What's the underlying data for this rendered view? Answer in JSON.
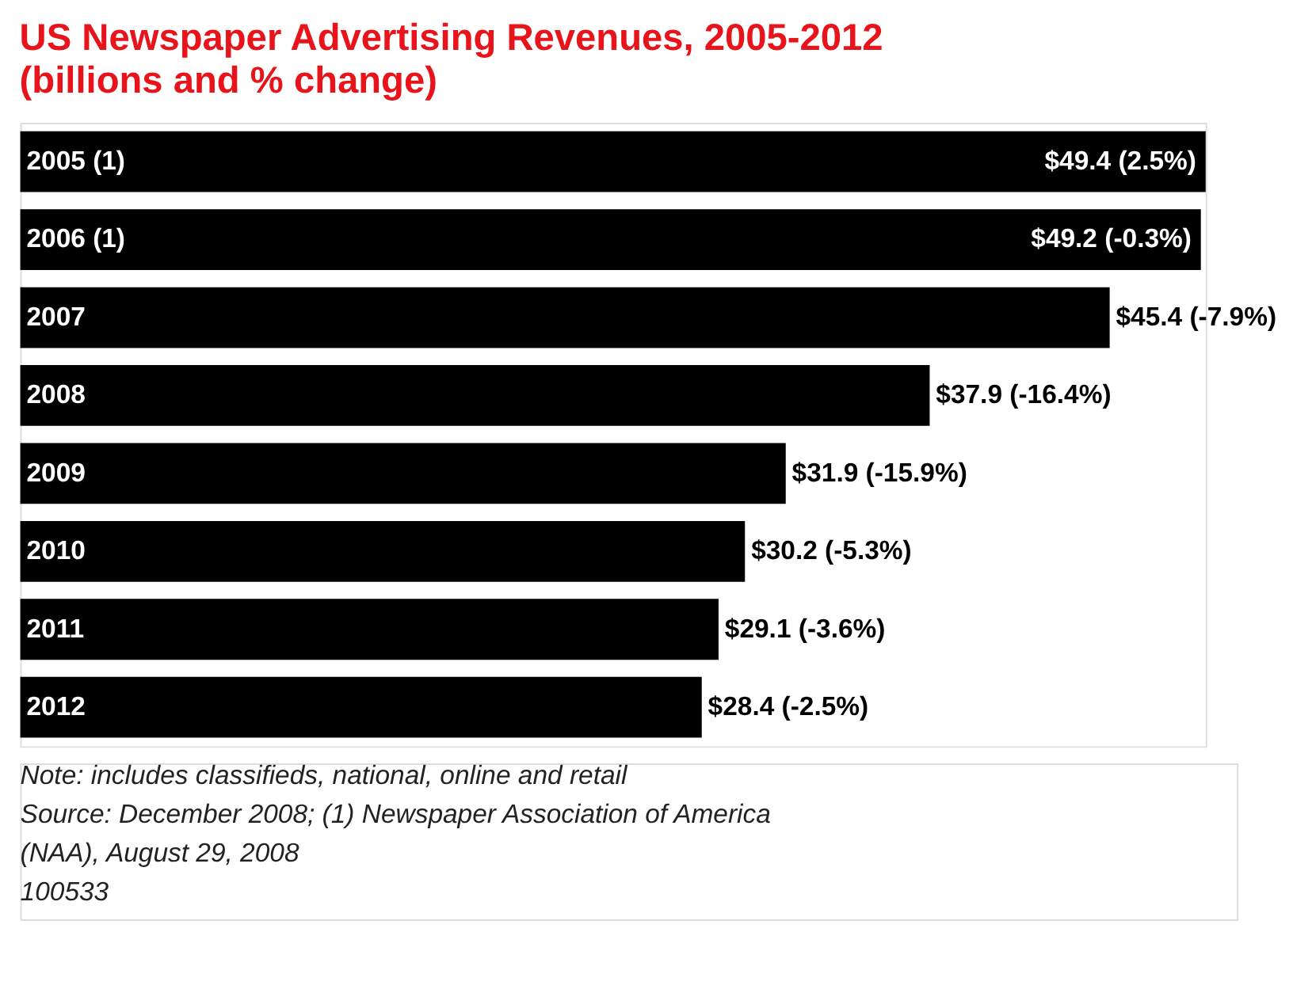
{
  "chart_data": {
    "type": "bar",
    "orientation": "horizontal",
    "title": "US Newspaper Advertising Revenues, 2005-2012",
    "subtitle": "(billions and % change)",
    "categories": [
      "2005 (1)",
      "2006 (1)",
      "2007",
      "2008",
      "2009",
      "2010",
      "2011",
      "2012"
    ],
    "values": [
      49.4,
      49.2,
      45.4,
      37.9,
      31.9,
      30.2,
      29.1,
      28.4
    ],
    "value_labels": [
      "$49.4 (2.5%)",
      "$49.2 (-0.3%)",
      "$45.4 (-7.9%)",
      "$37.9 (-16.4%)",
      "$31.9 (-15.9%)",
      "$30.2 (-5.3%)",
      "$29.1 (-3.6%)",
      "$28.4 (-2.5%)"
    ],
    "color": "#000000",
    "annotations": [
      "Note: includes classifieds, national, online and retail",
      "Source: December 2008; (1) Newspaper Association of America",
      "(NAA), August 29, 2008",
      "100533"
    ]
  }
}
